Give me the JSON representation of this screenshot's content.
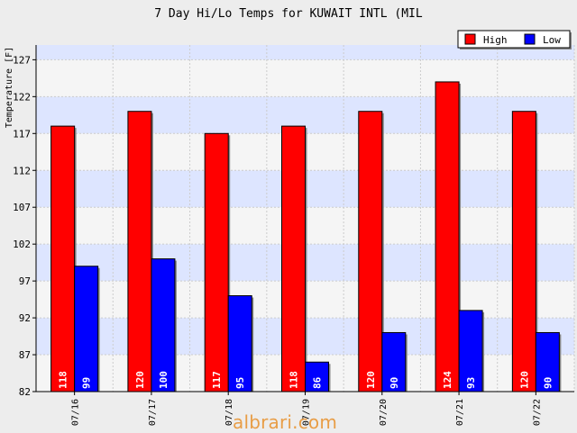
{
  "chart_data": {
    "type": "bar",
    "title": "7 Day Hi/Lo Temps for KUWAIT INTL (MIL",
    "ylabel": "Temperature [F]",
    "xlabel": "",
    "categories": [
      "07/16",
      "07/17",
      "07/18",
      "07/19",
      "07/20",
      "07/21",
      "07/22"
    ],
    "ylim": [
      82,
      129
    ],
    "yticks": [
      82,
      87,
      92,
      97,
      102,
      107,
      112,
      117,
      122,
      127
    ],
    "series": [
      {
        "name": "High",
        "values": [
          118,
          120,
          117,
          118,
          120,
          124,
          120
        ],
        "color": "#ff0000"
      },
      {
        "name": "Low",
        "values": [
          99,
          100,
          95,
          86,
          90,
          93,
          90
        ],
        "color": "#0000ff"
      }
    ],
    "legend_position": "top-right",
    "band_colors": [
      "#f5f5f5",
      "#dde5ff"
    ],
    "grid": true
  },
  "watermark": "albrari.com"
}
